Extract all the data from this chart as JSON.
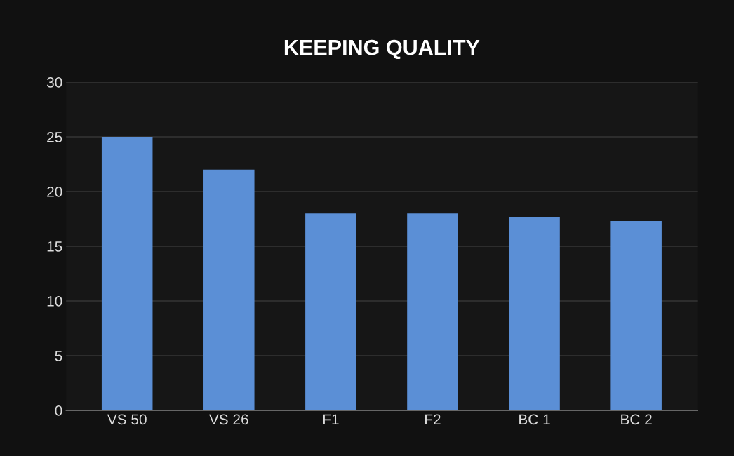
{
  "chart_data": {
    "type": "bar",
    "title": "KEEPING QUALITY",
    "categories": [
      "VS 50",
      "VS 26",
      "F1",
      "F2",
      "BC 1",
      "BC 2"
    ],
    "values": [
      25,
      22,
      18,
      18,
      17.7,
      17.3
    ],
    "color": "#5b8fd6",
    "ylim": [
      0,
      30
    ],
    "yticks": [
      0,
      5,
      10,
      15,
      20,
      25,
      30
    ],
    "grid": "y",
    "legend": false
  }
}
